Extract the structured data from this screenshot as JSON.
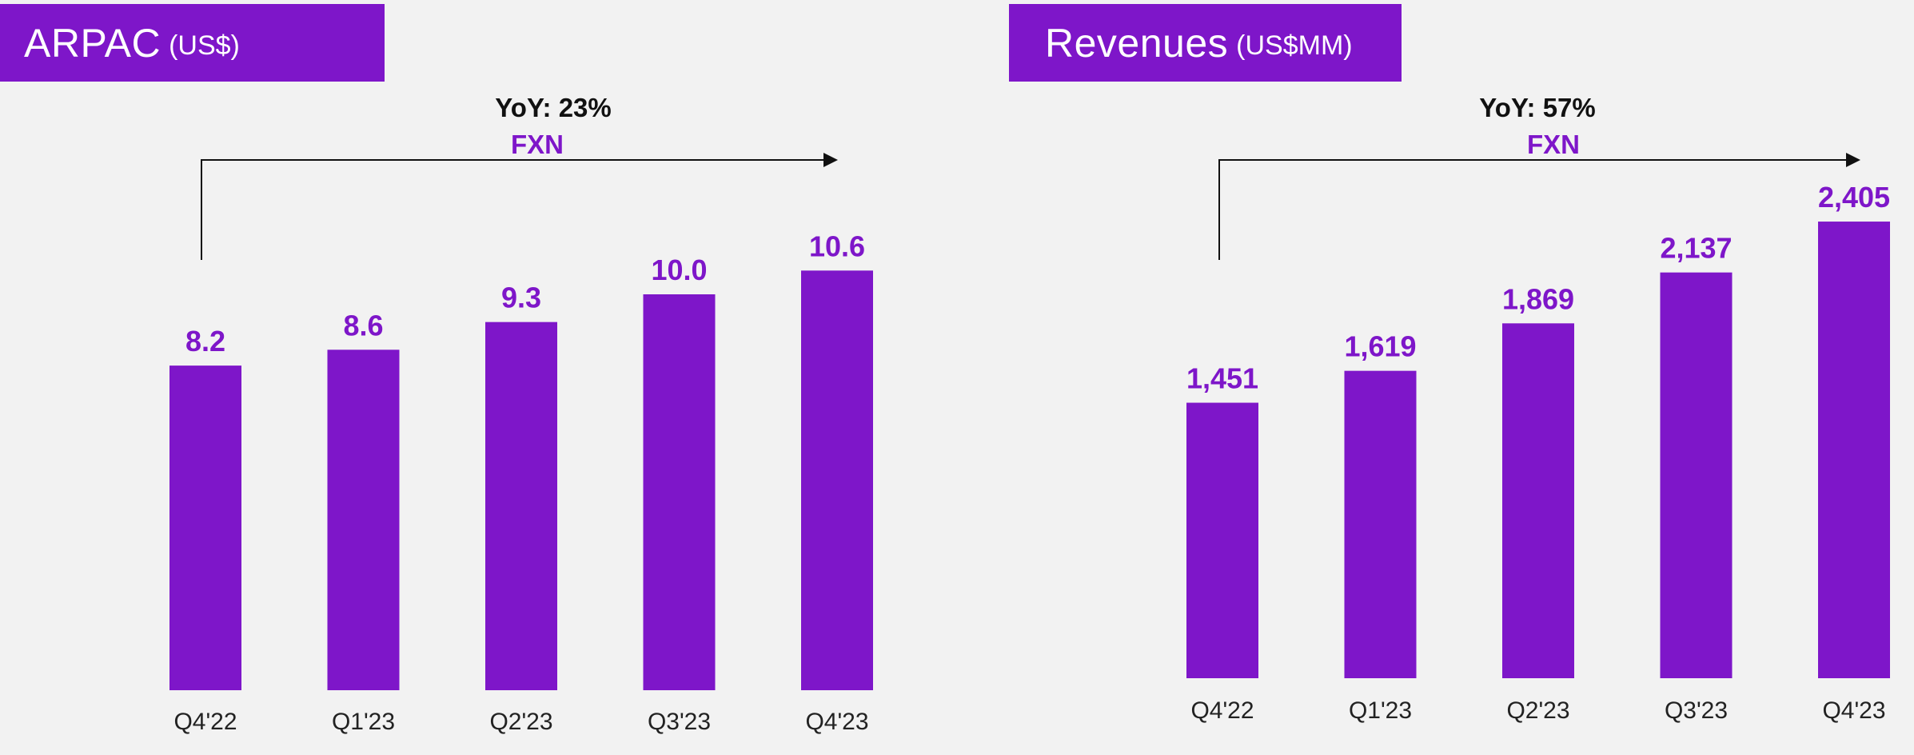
{
  "colors": {
    "bar": "#7e16c9",
    "title_bg": "#7e16c9",
    "accent_text": "#7e16c9",
    "background": "#f2f2f2"
  },
  "arpac": {
    "title": "ARPAC",
    "unit": "(US$)",
    "yoy_label": "YoY: 23%",
    "fxn_label": "FXN"
  },
  "revenues": {
    "title": "Revenues",
    "unit": "(US$MM)",
    "yoy_label": "YoY: 57%",
    "fxn_label": "FXN"
  },
  "chart_data": [
    {
      "type": "bar",
      "title": "ARPAC (US$)",
      "categories": [
        "Q4'22",
        "Q1'23",
        "Q2'23",
        "Q3'23",
        "Q4'23"
      ],
      "values": [
        8.2,
        8.6,
        9.3,
        10.0,
        10.6
      ],
      "value_labels": [
        "8.2",
        "8.6",
        "9.3",
        "10.0",
        "10.6"
      ],
      "annotation": "YoY: 23% FXN",
      "grid": false,
      "legend": "none"
    },
    {
      "type": "bar",
      "title": "Revenues (US$MM)",
      "categories": [
        "Q4'22",
        "Q1'23",
        "Q2'23",
        "Q3'23",
        "Q4'23"
      ],
      "values": [
        1451,
        1619,
        1869,
        2137,
        2405
      ],
      "value_labels": [
        "1,451",
        "1,619",
        "1,869",
        "2,137",
        "2,405"
      ],
      "annotation": "YoY: 57% FXN",
      "grid": false,
      "legend": "none"
    }
  ]
}
